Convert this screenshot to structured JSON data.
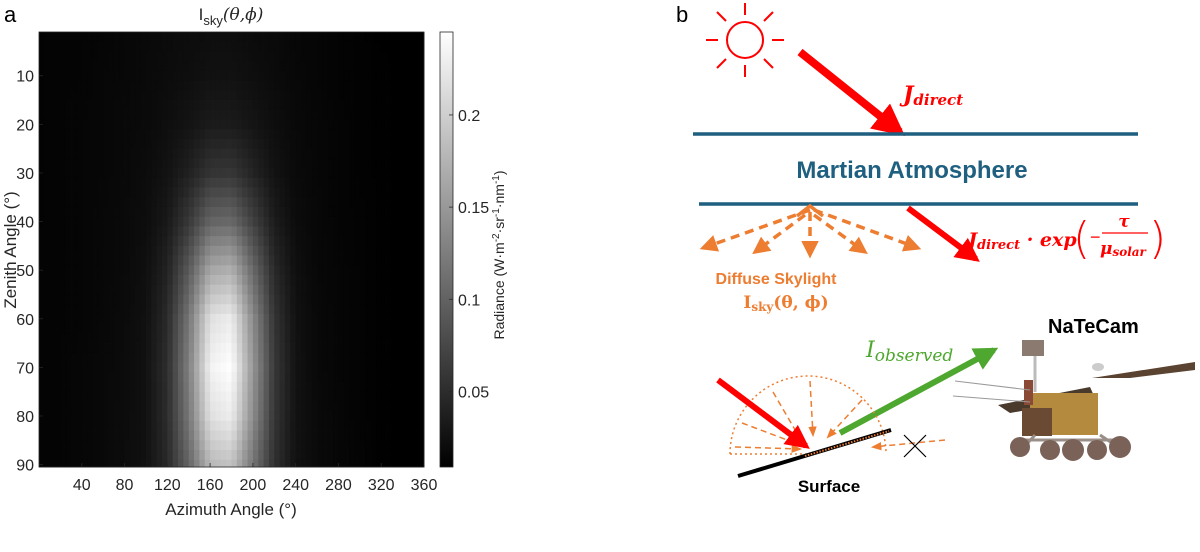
{
  "panel_labels": {
    "a": "a",
    "b": "b"
  },
  "chart_data": {
    "type": "heatmap",
    "title": {
      "main": "I",
      "subscript": "sky",
      "args": "(θ,ϕ)"
    },
    "xlabel": "Azimuth Angle (°)",
    "ylabel": "Zenith Angle (°)",
    "colorbar_label": {
      "prefix": "Radiance (W·m",
      "exp1": "-2",
      "mid1": "·sr",
      "exp2": "-1",
      "mid2": "·nm",
      "exp3": "-1",
      "suffix": ")"
    },
    "colormap": "gray",
    "xlim": [
      0,
      360
    ],
    "ylim": [
      1,
      90.5
    ],
    "y_reversed": true,
    "clim": [
      0.009,
      0.245
    ],
    "xticks": [
      40,
      80,
      120,
      160,
      200,
      240,
      280,
      320,
      360
    ],
    "yticks": [
      10,
      20,
      30,
      40,
      50,
      60,
      70,
      80,
      90
    ],
    "cticks": [
      0.05,
      0.1,
      0.15,
      0.2
    ],
    "ctick_labels": [
      "0.05",
      "0.1",
      "0.15",
      "0.2"
    ],
    "azimuth": [
      0,
      20,
      40,
      60,
      80,
      100,
      120,
      140,
      160,
      180,
      200,
      220,
      240,
      260,
      280,
      300,
      320,
      340,
      360
    ],
    "zenith": [
      0,
      10,
      20,
      30,
      40,
      50,
      60,
      70,
      80,
      90
    ],
    "values_by_azimuth": [
      [
        0.012,
        0.012,
        0.012,
        0.012,
        0.012,
        0.013,
        0.013,
        0.013,
        0.013,
        0.013
      ],
      [
        0.013,
        0.013,
        0.013,
        0.013,
        0.013,
        0.013,
        0.013,
        0.013,
        0.013,
        0.013
      ],
      [
        0.013,
        0.013,
        0.014,
        0.014,
        0.014,
        0.014,
        0.014,
        0.015,
        0.015,
        0.015
      ],
      [
        0.014,
        0.015,
        0.015,
        0.015,
        0.016,
        0.016,
        0.016,
        0.017,
        0.017,
        0.017
      ],
      [
        0.016,
        0.016,
        0.017,
        0.017,
        0.018,
        0.018,
        0.019,
        0.019,
        0.02,
        0.02
      ],
      [
        0.017,
        0.018,
        0.018,
        0.02,
        0.021,
        0.023,
        0.024,
        0.025,
        0.024,
        0.025
      ],
      [
        0.019,
        0.02,
        0.022,
        0.026,
        0.032,
        0.041,
        0.048,
        0.051,
        0.05,
        0.046
      ],
      [
        0.02,
        0.022,
        0.027,
        0.039,
        0.061,
        0.092,
        0.118,
        0.127,
        0.119,
        0.102
      ],
      [
        0.021,
        0.025,
        0.034,
        0.057,
        0.102,
        0.163,
        0.216,
        0.233,
        0.216,
        0.18
      ],
      [
        0.021,
        0.025,
        0.034,
        0.059,
        0.106,
        0.172,
        0.228,
        0.245,
        0.228,
        0.19
      ],
      [
        0.019,
        0.022,
        0.028,
        0.042,
        0.069,
        0.106,
        0.137,
        0.148,
        0.138,
        0.117
      ],
      [
        0.018,
        0.019,
        0.022,
        0.026,
        0.035,
        0.047,
        0.057,
        0.061,
        0.058,
        0.053
      ],
      [
        0.015,
        0.016,
        0.017,
        0.018,
        0.02,
        0.023,
        0.025,
        0.026,
        0.026,
        0.025
      ],
      [
        0.014,
        0.014,
        0.015,
        0.015,
        0.016,
        0.016,
        0.017,
        0.017,
        0.018,
        0.018
      ],
      [
        0.012,
        0.012,
        0.013,
        0.013,
        0.013,
        0.014,
        0.014,
        0.014,
        0.015,
        0.015
      ],
      [
        0.011,
        0.011,
        0.011,
        0.011,
        0.012,
        0.012,
        0.012,
        0.012,
        0.012,
        0.013
      ],
      [
        0.009,
        0.01,
        0.01,
        0.01,
        0.01,
        0.01,
        0.01,
        0.01,
        0.01,
        0.01
      ],
      [
        0.009,
        0.009,
        0.009,
        0.009,
        0.009,
        0.009,
        0.009,
        0.009,
        0.009,
        0.009
      ],
      [
        0.008,
        0.008,
        0.008,
        0.008,
        0.008,
        0.008,
        0.008,
        0.008,
        0.008,
        0.008
      ]
    ]
  },
  "diagram": {
    "j_direct": {
      "base": "J",
      "sub": "direct"
    },
    "atmosphere_label": "Martian Atmosphere",
    "transmitted": {
      "base": "J",
      "sub": "direct",
      "op": " · exp",
      "minus": "−",
      "num": "τ",
      "den_base": "μ",
      "den_sub": "solar"
    },
    "diffuse_label": "Diffuse Skylight",
    "diffuse_formula": {
      "base": "I",
      "sub": "sky",
      "args": "(θ, ϕ)"
    },
    "observed": {
      "base": "I",
      "sub": "observed"
    },
    "camera_label": "NaTeCam",
    "surface_label": "Surface",
    "colors": {
      "sun": "#ff0000",
      "atmosphere": "#1f5f7f",
      "diffuse": "#ed7d31",
      "observed": "#4ea72e",
      "surface": "#000000"
    }
  }
}
